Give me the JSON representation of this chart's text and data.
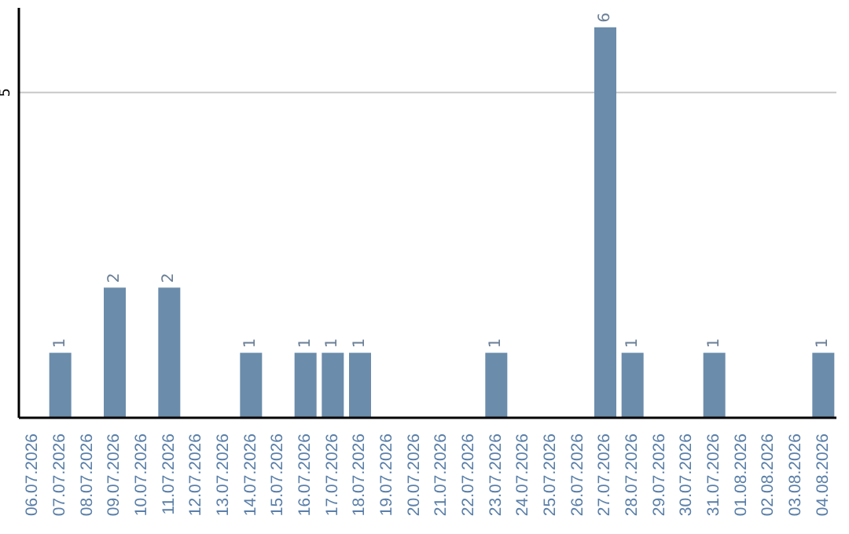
{
  "chart_data": {
    "type": "bar",
    "categories": [
      "06.07.2026",
      "07.07.2026",
      "08.07.2026",
      "09.07.2026",
      "10.07.2026",
      "11.07.2026",
      "12.07.2026",
      "13.07.2026",
      "14.07.2026",
      "15.07.2026",
      "16.07.2026",
      "17.07.2026",
      "18.07.2026",
      "19.07.2026",
      "20.07.2026",
      "21.07.2026",
      "22.07.2026",
      "23.07.2026",
      "24.07.2026",
      "25.07.2026",
      "26.07.2026",
      "27.07.2026",
      "28.07.2026",
      "29.07.2026",
      "30.07.2026",
      "31.07.2026",
      "01.08.2026",
      "02.08.2026",
      "03.08.2026",
      "04.08.2026"
    ],
    "values": [
      0,
      1,
      0,
      2,
      0,
      2,
      0,
      0,
      1,
      0,
      1,
      1,
      1,
      0,
      0,
      0,
      0,
      1,
      0,
      0,
      0,
      6,
      1,
      0,
      0,
      1,
      0,
      0,
      0,
      1
    ],
    "value_labels": [
      null,
      "1",
      null,
      "2",
      null,
      "2",
      null,
      null,
      "1",
      null,
      "1",
      "1",
      "1",
      null,
      null,
      null,
      null,
      "1",
      null,
      null,
      null,
      "6",
      "1",
      null,
      null,
      "1",
      null,
      null,
      null,
      "1"
    ],
    "color": "#6b8cab",
    "ylim": [
      0,
      6.3
    ],
    "yticks": [
      5
    ],
    "grid": "y"
  }
}
